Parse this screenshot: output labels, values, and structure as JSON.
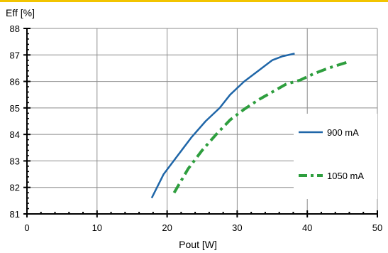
{
  "accent": "#f2c400",
  "chart_data": {
    "type": "line",
    "xlabel": "Pout [W]",
    "ylabel": "Eff [%]",
    "xlim": [
      0,
      50
    ],
    "ylim": [
      81,
      88
    ],
    "xticks": [
      0,
      10,
      20,
      30,
      40,
      50
    ],
    "yticks": [
      81,
      82,
      83,
      84,
      85,
      86,
      87,
      88
    ],
    "x_tick_labels": [
      "0",
      "10",
      "20",
      "30",
      "40",
      "50"
    ],
    "y_tick_labels": [
      "81",
      "82",
      "83",
      "84",
      "85",
      "86",
      "87",
      "88"
    ],
    "grid": true,
    "legend_position": "right",
    "series": [
      {
        "name": "900 mA",
        "color": "#1f66a8",
        "style": "solid",
        "x": [
          17.8,
          19.5,
          21.5,
          23.5,
          25.5,
          27.5,
          29.0,
          31.0,
          33.0,
          35.0,
          36.5,
          38.2
        ],
        "y": [
          81.6,
          82.5,
          83.2,
          83.9,
          84.5,
          85.0,
          85.5,
          86.0,
          86.4,
          86.8,
          86.95,
          87.05
        ]
      },
      {
        "name": "1050 mA",
        "color": "#2e9e3e",
        "style": "dashdot",
        "x": [
          21.0,
          23.0,
          25.0,
          27.0,
          29.0,
          31.0,
          33.0,
          35.0,
          37.0,
          39.0,
          41.0,
          43.0,
          46.0
        ],
        "y": [
          81.8,
          82.7,
          83.4,
          84.0,
          84.55,
          84.95,
          85.3,
          85.6,
          85.9,
          86.05,
          86.3,
          86.5,
          86.75
        ]
      }
    ]
  }
}
